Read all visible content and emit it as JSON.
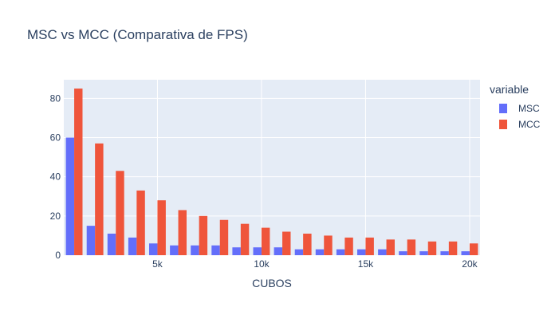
{
  "chart_data": {
    "type": "bar",
    "title": "MSC vs MCC (Comparativa de FPS)",
    "xlabel": "CUBOS",
    "ylabel": "",
    "legend_title": "variable",
    "legend_position": "top-right",
    "grid": true,
    "x": [
      1000,
      2000,
      3000,
      4000,
      5000,
      6000,
      7000,
      8000,
      9000,
      10000,
      11000,
      12000,
      13000,
      14000,
      15000,
      16000,
      17000,
      18000,
      19000,
      20000
    ],
    "xlim": [
      500,
      20500
    ],
    "ylim": [
      0,
      89.5
    ],
    "x_ticks": [
      {
        "value": 5000,
        "label": "5k"
      },
      {
        "value": 10000,
        "label": "10k"
      },
      {
        "value": 15000,
        "label": "15k"
      },
      {
        "value": 20000,
        "label": "20k"
      }
    ],
    "y_ticks": [
      {
        "value": 0,
        "label": "0"
      },
      {
        "value": 20,
        "label": "20"
      },
      {
        "value": 40,
        "label": "40"
      },
      {
        "value": 60,
        "label": "60"
      },
      {
        "value": 80,
        "label": "80"
      }
    ],
    "series": [
      {
        "name": "MSC",
        "color": "#636efa",
        "values": [
          60,
          15,
          11,
          9,
          6,
          5,
          5,
          5,
          4,
          4,
          4,
          3,
          3,
          3,
          3,
          3,
          2,
          2,
          2,
          2
        ]
      },
      {
        "name": "MCC",
        "color": "#ef553b",
        "values": [
          85,
          57,
          43,
          33,
          28,
          23,
          20,
          18,
          16,
          14,
          12,
          11,
          10,
          9,
          9,
          8,
          8,
          7,
          7,
          6
        ]
      }
    ]
  },
  "colors": {
    "plot_background": "#e5ecf6",
    "grid": "#ffffff",
    "text": "#2a3f5f"
  }
}
